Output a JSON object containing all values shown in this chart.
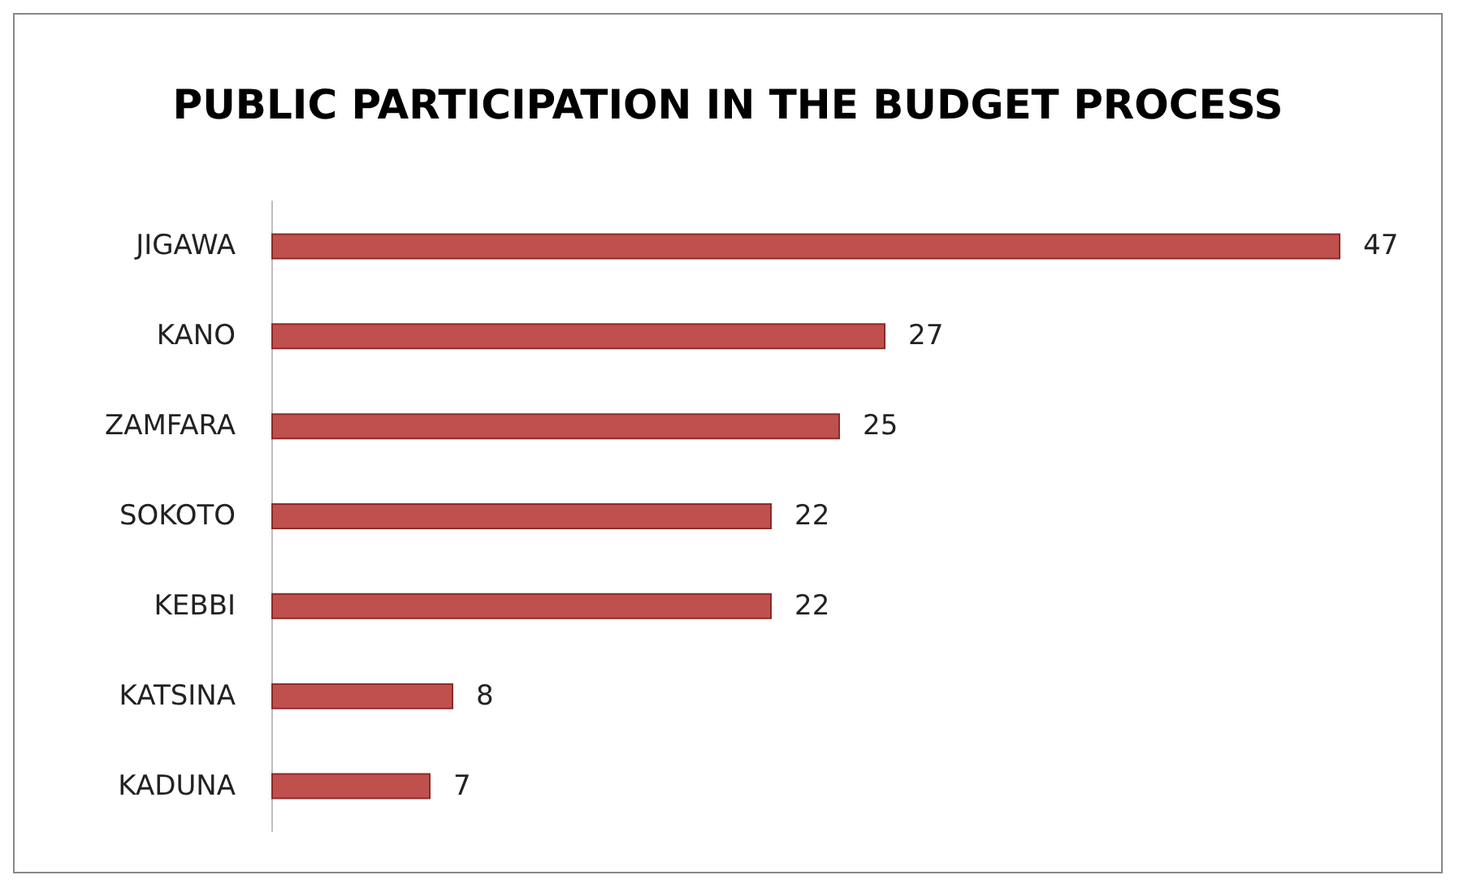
{
  "chart_data": {
    "type": "bar",
    "orientation": "horizontal",
    "title": "PUBLIC PARTICIPATION IN THE BUDGET PROCESS",
    "categories": [
      "JIGAWA",
      "KANO",
      "ZAMFARA",
      "SOKOTO",
      "KEBBI",
      "KATSINA",
      "KADUNA"
    ],
    "values": [
      47,
      27,
      25,
      22,
      22,
      8,
      7
    ],
    "color": "#c0504d",
    "data_labels": true,
    "tick_labels": "y",
    "grid": false
  }
}
